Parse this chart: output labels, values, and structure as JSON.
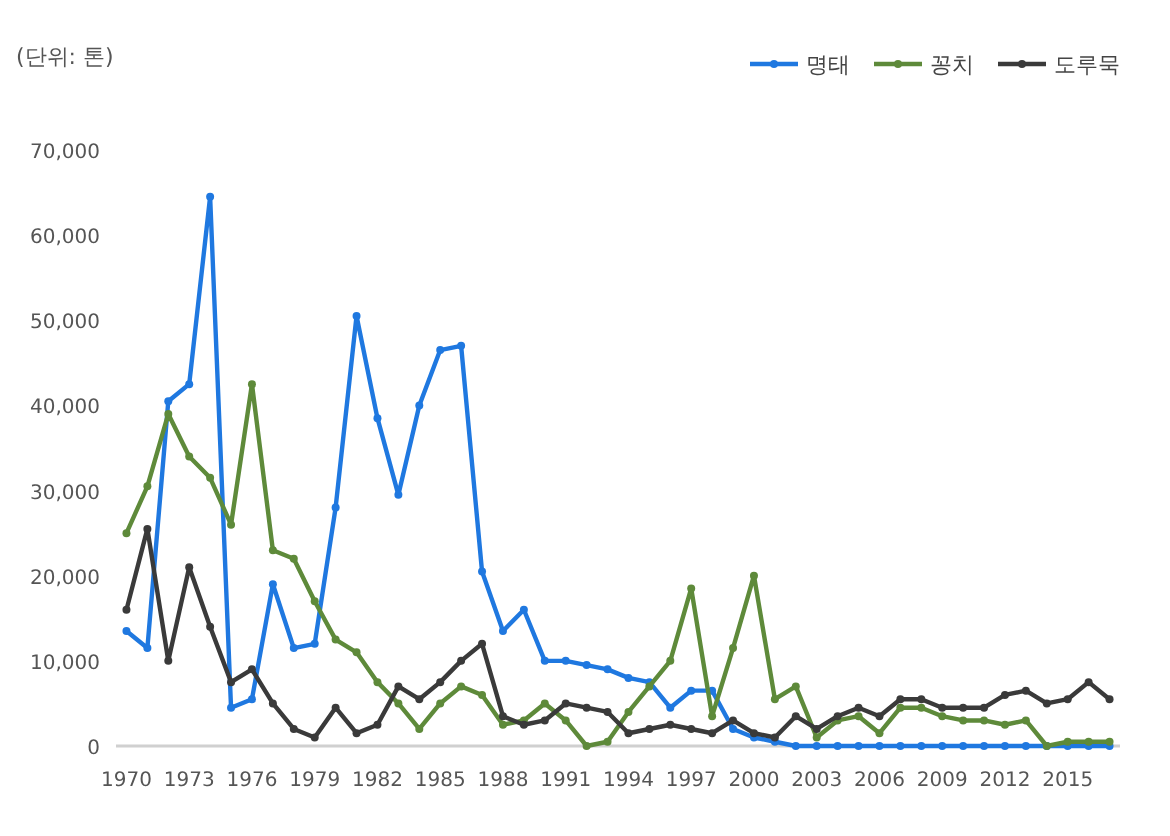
{
  "chart_data": {
    "type": "line",
    "ylabel": "(단위: 톤)",
    "x": [
      1970,
      1971,
      1972,
      1973,
      1974,
      1975,
      1976,
      1977,
      1978,
      1979,
      1980,
      1981,
      1982,
      1983,
      1984,
      1985,
      1986,
      1987,
      1988,
      1989,
      1990,
      1991,
      1992,
      1993,
      1994,
      1995,
      1996,
      1997,
      1998,
      1999,
      2000,
      2001,
      2002,
      2003,
      2004,
      2005,
      2006,
      2007,
      2008,
      2009,
      2010,
      2011,
      2012,
      2013,
      2014,
      2015,
      2016,
      2017
    ],
    "xlim": [
      1969.5,
      2017.5
    ],
    "xticks": [
      1970,
      1973,
      1976,
      1979,
      1982,
      1985,
      1988,
      1991,
      1994,
      1997,
      2000,
      2003,
      2006,
      2009,
      2012,
      2015
    ],
    "ylim": [
      0,
      70000
    ],
    "yticks": [
      {
        "value": 0,
        "label": "0"
      },
      {
        "value": 10000,
        "label": "10,000"
      },
      {
        "value": 20000,
        "label": "20,000"
      },
      {
        "value": 30000,
        "label": "30,000"
      },
      {
        "value": 40000,
        "label": "40,000"
      },
      {
        "value": 50000,
        "label": "50,000"
      },
      {
        "value": 60000,
        "label": "60,000"
      },
      {
        "value": 70000,
        "label": "70,000"
      }
    ],
    "legend": "top right",
    "marker": "circle",
    "line_style": "solid",
    "series": [
      {
        "name": "명태",
        "color": "#1f78e0",
        "values": [
          13500,
          11500,
          40500,
          42500,
          64500,
          4500,
          5500,
          19000,
          11500,
          12000,
          28000,
          50500,
          38500,
          29500,
          40000,
          46500,
          47000,
          20500,
          13500,
          16000,
          10000,
          10000,
          9500,
          9000,
          8000,
          7500,
          4500,
          6500,
          6500,
          2000,
          1000,
          500,
          0,
          0,
          0,
          0,
          0,
          0,
          0,
          0,
          0,
          0,
          0,
          0,
          0,
          0,
          0,
          0
        ]
      },
      {
        "name": "꽁치",
        "color": "#5e8a3a",
        "values": [
          25000,
          30500,
          39000,
          34000,
          31500,
          26000,
          42500,
          23000,
          22000,
          17000,
          12500,
          11000,
          7500,
          5000,
          2000,
          5000,
          7000,
          6000,
          2500,
          3000,
          5000,
          3000,
          0,
          500,
          4000,
          7000,
          10000,
          18500,
          3500,
          11500,
          20000,
          5500,
          7000,
          1000,
          3000,
          3500,
          1500,
          4500,
          4500,
          3500,
          3000,
          3000,
          2500,
          3000,
          0,
          500,
          500,
          500
        ]
      },
      {
        "name": "도루묵",
        "color": "#3a3a3a",
        "values": [
          16000,
          25500,
          10000,
          21000,
          14000,
          7500,
          9000,
          5000,
          2000,
          1000,
          4500,
          1500,
          2500,
          7000,
          5500,
          7500,
          10000,
          12000,
          3500,
          2500,
          3000,
          5000,
          4500,
          4000,
          1500,
          2000,
          2500,
          2000,
          1500,
          3000,
          1500,
          1000,
          3500,
          2000,
          3500,
          4500,
          3500,
          5500,
          5500,
          4500,
          4500,
          4500,
          6000,
          6500,
          5000,
          5500,
          7500,
          5500
        ]
      }
    ]
  }
}
